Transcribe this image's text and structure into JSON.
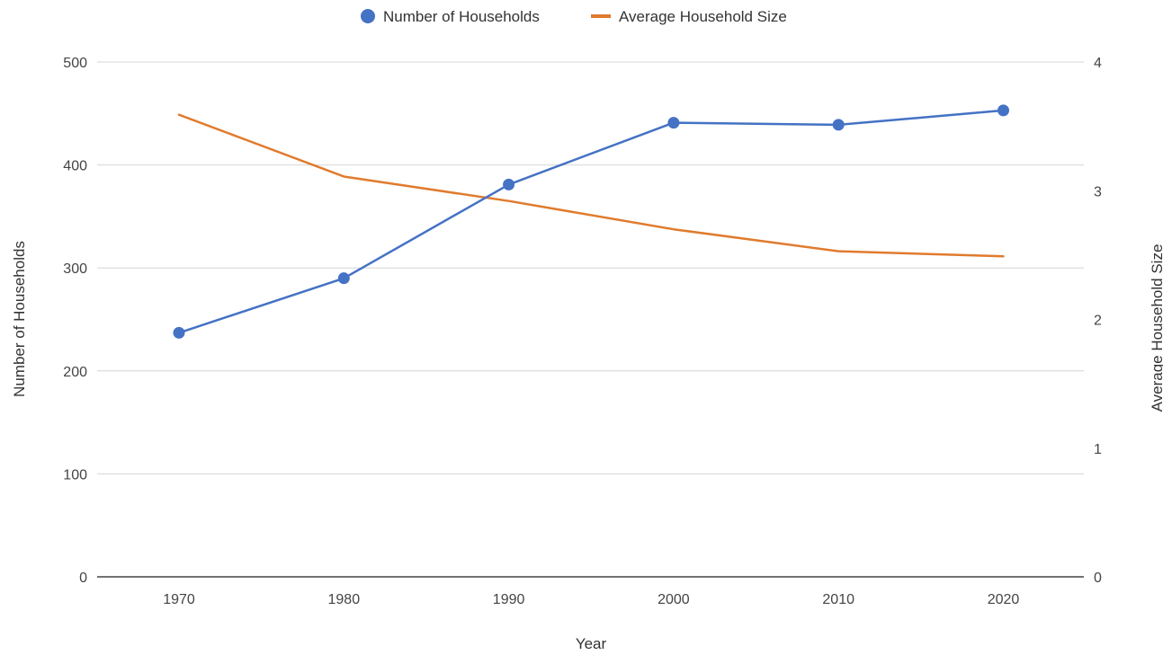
{
  "chart_data": {
    "type": "line",
    "x": [
      "1970",
      "1980",
      "1990",
      "2000",
      "2010",
      "2020"
    ],
    "xlabel": "Year",
    "ylabel_left": "Number of Households",
    "ylabel_right": "Average Household Size",
    "ylim_left": [
      0,
      500
    ],
    "ylim_right": [
      0,
      4
    ],
    "yticks_left": [
      "0",
      "100",
      "200",
      "300",
      "400",
      "500"
    ],
    "yticks_right": [
      "0",
      "1",
      "2",
      "3",
      "4"
    ],
    "grid": true,
    "legend_position": "top",
    "series": [
      {
        "name": "Number of Households",
        "axis": "left",
        "marker": "circle",
        "color": "#4472c4",
        "values": [
          237,
          290,
          381,
          441,
          439,
          453
        ]
      },
      {
        "name": "Average Household Size",
        "axis": "right",
        "marker": "none",
        "color": "#e07b2e",
        "values": [
          3.59,
          3.11,
          2.92,
          2.7,
          2.53,
          2.49
        ]
      }
    ]
  }
}
